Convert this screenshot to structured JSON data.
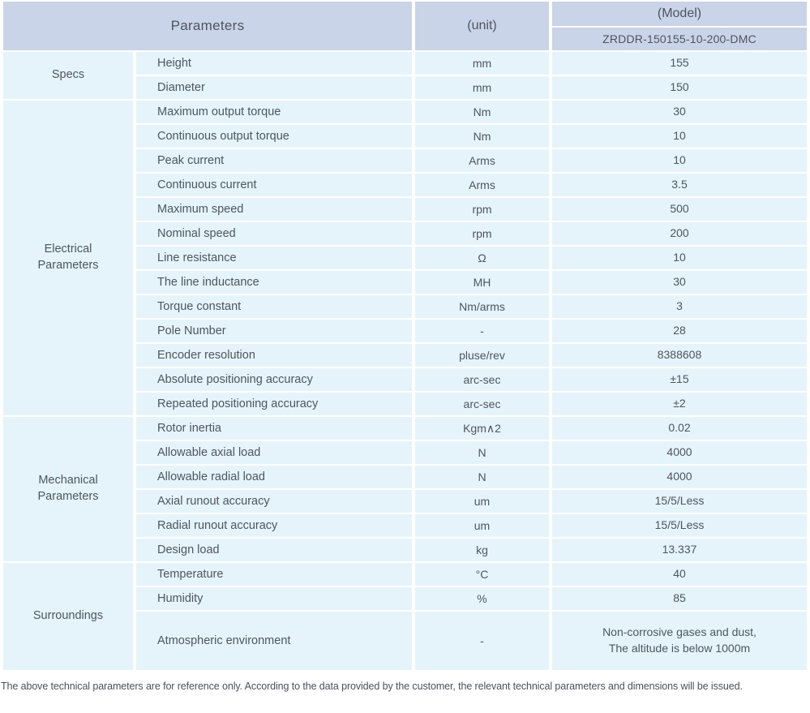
{
  "colors": {
    "header_bg": "#c9d4e9",
    "row_bg": "#e5f4fb",
    "divider": "#ffffff",
    "text": "#4e555e",
    "footnote_text": "#4b5158"
  },
  "header": {
    "parameters": "Parameters",
    "unit": "(unit)",
    "model": "(Model)",
    "model_code": "ZRDDR-150155-10-200-DMC"
  },
  "groups": [
    {
      "label": "Specs",
      "rows": [
        {
          "param": "Height",
          "unit": "mm",
          "value": "155"
        },
        {
          "param": "Diameter",
          "unit": "mm",
          "value": "150"
        }
      ]
    },
    {
      "label": "Electrical\nParameters",
      "rows": [
        {
          "param": "Maximum output torque",
          "unit": "Nm",
          "value": "30"
        },
        {
          "param": "Continuous output torque",
          "unit": "Nm",
          "value": "10"
        },
        {
          "param": "Peak current",
          "unit": "Arms",
          "value": "10"
        },
        {
          "param": "Continuous current",
          "unit": "Arms",
          "value": "3.5"
        },
        {
          "param": "Maximum speed",
          "unit": "rpm",
          "value": "500"
        },
        {
          "param": "Nominal speed",
          "unit": "rpm",
          "value": "200"
        },
        {
          "param": "Line resistance",
          "unit": "Ω",
          "value": "10"
        },
        {
          "param": "The line inductance",
          "unit": "MH",
          "value": "30"
        },
        {
          "param": "Torque constant",
          "unit": "Nm/arms",
          "value": "3"
        },
        {
          "param": "Pole Number",
          "unit": "-",
          "value": "28"
        },
        {
          "param": "Encoder resolution",
          "unit": "pluse/rev",
          "value": "8388608"
        },
        {
          "param": "Absolute positioning accuracy",
          "unit": "arc-sec",
          "value": "±15"
        },
        {
          "param": "Repeated positioning accuracy",
          "unit": "arc-sec",
          "value": "±2"
        }
      ]
    },
    {
      "label": "Mechanical\nParameters",
      "rows": [
        {
          "param": "Rotor inertia",
          "unit": "Kgm∧2",
          "value": "0.02"
        },
        {
          "param": "Allowable axial load",
          "unit": "N",
          "value": "4000"
        },
        {
          "param": "Allowable radial load",
          "unit": "N",
          "value": "4000"
        },
        {
          "param": "Axial runout accuracy",
          "unit": "um",
          "value": "15/5/Less"
        },
        {
          "param": "Radial runout accuracy",
          "unit": "um",
          "value": "15/5/Less"
        },
        {
          "param": "Design load",
          "unit": "kg",
          "value": "13.337"
        }
      ]
    },
    {
      "label": "Surroundings",
      "rows": [
        {
          "param": "Temperature",
          "unit": "°C",
          "value": "40"
        },
        {
          "param": "Humidity",
          "unit": "%",
          "value": "85"
        },
        {
          "param": "Atmospheric environment",
          "unit": "-",
          "value": "Non-corrosive gases and dust,\nThe altitude is below 1000m"
        }
      ]
    }
  ],
  "footnote": "The above technical parameters are for reference only. According to the data provided by the customer, the relevant technical parameters and dimensions will be issued."
}
